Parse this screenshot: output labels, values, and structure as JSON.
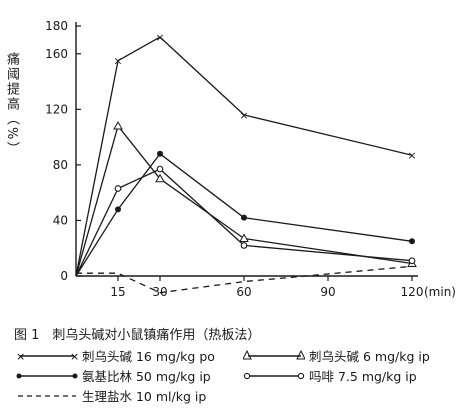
{
  "chart_data": {
    "type": "line",
    "title": "",
    "xlabel": "",
    "ylabel": "痛阈提高（%）",
    "x_unit": "(min)",
    "xlim": [
      0,
      120
    ],
    "ylim": [
      0,
      180
    ],
    "x_ticks": [
      15,
      30,
      60,
      90,
      120
    ],
    "y_ticks": [
      0,
      40,
      80,
      120,
      160,
      180
    ],
    "grid": false,
    "legend_position": "below",
    "series": [
      {
        "name": "刺乌头碱 16 mg/kg po",
        "marker": "x",
        "line": "solid",
        "x": [
          0,
          15,
          30,
          60,
          120
        ],
        "y": [
          0,
          155,
          172,
          116,
          87
        ]
      },
      {
        "name": "刺乌头碱 6 mg/kg ip",
        "marker": "triangle",
        "line": "solid",
        "x": [
          0,
          15,
          30,
          60,
          120
        ],
        "y": [
          0,
          108,
          70,
          27,
          9
        ]
      },
      {
        "name": "氨基比林 50 mg/kg ip",
        "marker": "dot",
        "line": "solid",
        "x": [
          0,
          15,
          30,
          60,
          120
        ],
        "y": [
          0,
          48,
          88,
          42,
          25
        ]
      },
      {
        "name": "吗啡 7.5 mg/kg ip",
        "marker": "circle",
        "line": "solid",
        "x": [
          0,
          15,
          30,
          60,
          120
        ],
        "y": [
          0,
          63,
          77,
          22,
          11
        ]
      },
      {
        "name": "生理盐水 10 ml/kg ip",
        "marker": "none",
        "line": "dashed",
        "x": [
          0,
          15,
          30,
          60,
          120
        ],
        "y": [
          2,
          2,
          -12,
          -4,
          7
        ]
      }
    ]
  },
  "figure": {
    "caption": "图 1　刺乌头碱对小鼠镇痛作用（热板法）"
  },
  "legend": [
    {
      "label": "刺乌头碱 16 mg/kg po"
    },
    {
      "label": "刺乌头碱 6 mg/kg ip"
    },
    {
      "label": "氨基比林 50 mg/kg ip"
    },
    {
      "label": "吗啡 7.5 mg/kg ip"
    },
    {
      "label": "生理盐水 10 ml/kg ip"
    }
  ]
}
